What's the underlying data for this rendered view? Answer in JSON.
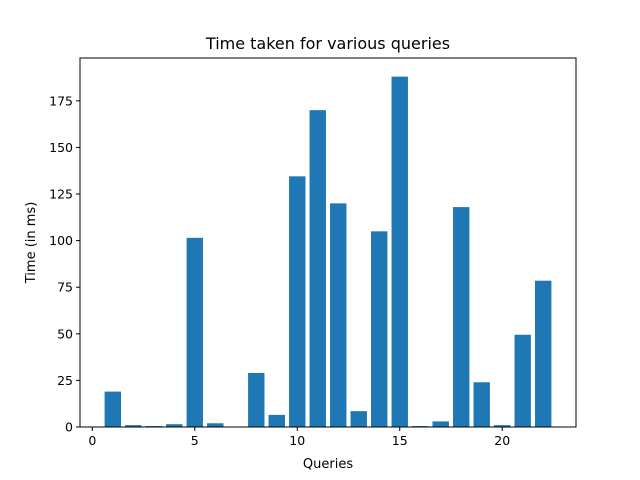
{
  "chart_data": {
    "type": "bar",
    "title": "Time taken for various queries",
    "xlabel": "Queries",
    "ylabel": "Time (in ms)",
    "x": [
      1,
      2,
      3,
      4,
      5,
      6,
      7,
      8,
      9,
      10,
      11,
      12,
      13,
      14,
      15,
      16,
      17,
      18,
      19,
      20,
      21,
      22
    ],
    "values": [
      19,
      1,
      0.5,
      1.5,
      101.5,
      2,
      0,
      29,
      6.5,
      134.5,
      170,
      120,
      8.5,
      105,
      188,
      0.5,
      3,
      118,
      24,
      1,
      49.5,
      78.5
    ],
    "xlim": [
      -0.6,
      23.6
    ],
    "ylim": [
      0,
      198
    ],
    "xticks": [
      0,
      5,
      10,
      15,
      20
    ],
    "yticks": [
      0,
      25,
      50,
      75,
      100,
      125,
      150,
      175
    ],
    "bar_color": "#1f77b4",
    "grid": false,
    "legend": "none"
  }
}
